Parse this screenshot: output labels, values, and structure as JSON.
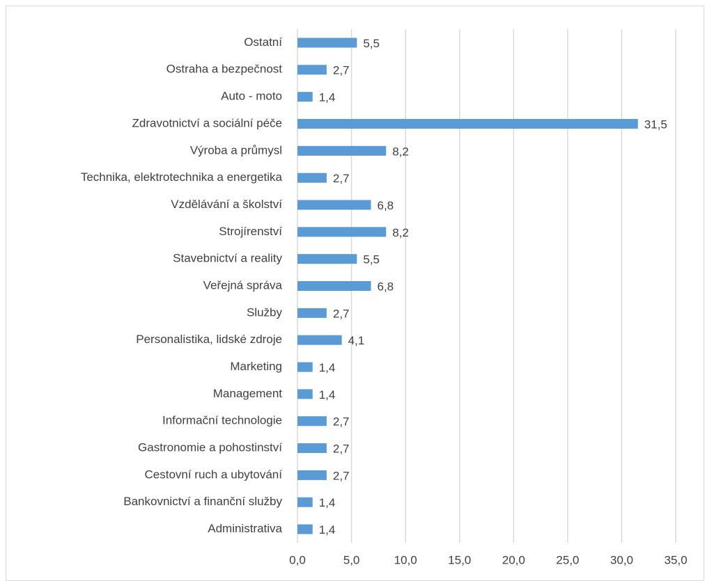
{
  "chart_data": {
    "type": "bar",
    "orientation": "horizontal",
    "categories": [
      "Ostatní",
      "Ostraha a bezpečnost",
      "Auto - moto",
      "Zdravotnictví a sociální péče",
      "Výroba a průmysl",
      "Technika, elektrotechnika a energetika",
      "Vzdělávání a školství",
      "Strojírenství",
      "Stavebnictví a reality",
      "Veřejná správa",
      "Služby",
      "Personalistika, lidské zdroje",
      "Marketing",
      "Management",
      "Informační technologie",
      "Gastronomie a pohostinství",
      "Cestovní ruch a ubytování",
      "Bankovnictví a finanční služby",
      "Administrativa"
    ],
    "values": [
      5.5,
      2.7,
      1.4,
      31.5,
      8.2,
      2.7,
      6.8,
      8.2,
      5.5,
      6.8,
      2.7,
      4.1,
      1.4,
      1.4,
      2.7,
      2.7,
      2.7,
      1.4,
      1.4
    ],
    "value_labels": [
      "5,5",
      "2,7",
      "1,4",
      "31,5",
      "8,2",
      "2,7",
      "6,8",
      "8,2",
      "5,5",
      "6,8",
      "2,7",
      "4,1",
      "1,4",
      "1,4",
      "2,7",
      "2,7",
      "2,7",
      "1,4",
      "1,4"
    ],
    "color": "#5b9bd5",
    "xlim": [
      0,
      35
    ],
    "xticks": [
      {
        "value": 0,
        "label": "0,0"
      },
      {
        "value": 5,
        "label": "5,0"
      },
      {
        "value": 10,
        "label": "10,0"
      },
      {
        "value": 15,
        "label": "15,0"
      },
      {
        "value": 20,
        "label": "20,0"
      },
      {
        "value": 25,
        "label": "25,0"
      },
      {
        "value": 30,
        "label": "30,0"
      },
      {
        "value": 35,
        "label": "35,0"
      }
    ],
    "grid": true
  }
}
